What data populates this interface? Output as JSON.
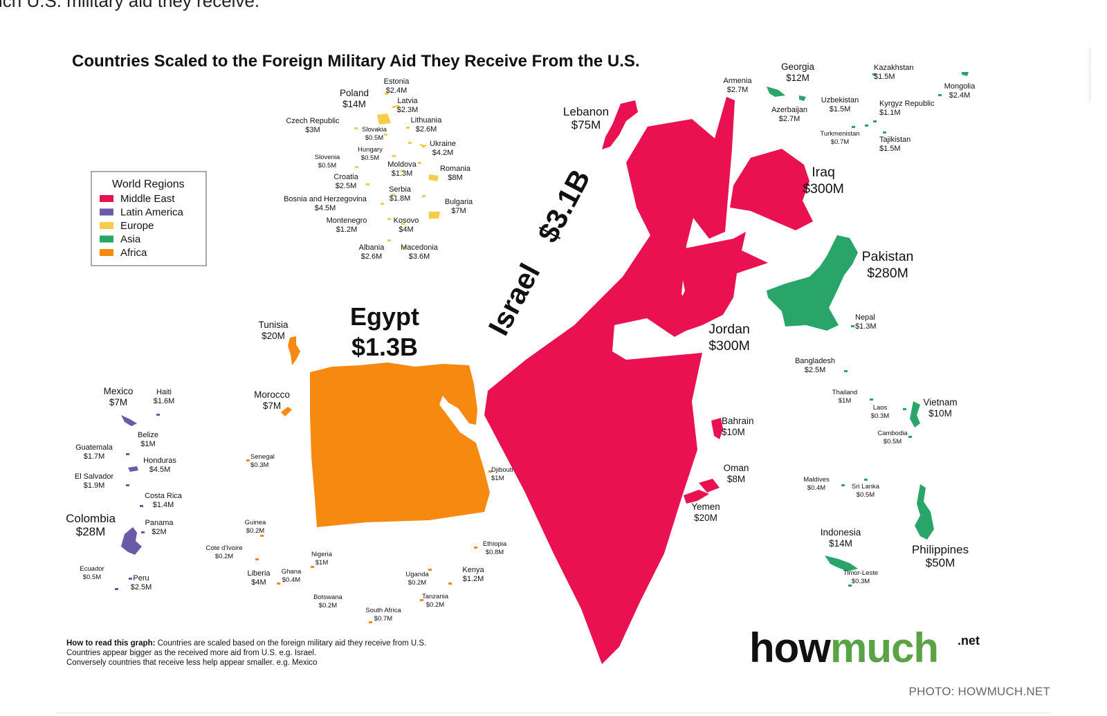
{
  "article": {
    "caption_fragment": "ich U.S. military aid they receive.",
    "photo_credit": "PHOTO: HOWMUCH.NET"
  },
  "map": {
    "title": "Countries Scaled to the Foreign Military Aid They Receive From the U.S.",
    "legend": {
      "title": "World Regions",
      "items": [
        {
          "label": "Middle East",
          "color": "#ea1150"
        },
        {
          "label": "Latin America",
          "color": "#6a5aa8"
        },
        {
          "label": "Europe",
          "color": "#f6cc4a"
        },
        {
          "label": "Asia",
          "color": "#2aa56a"
        },
        {
          "label": "Africa",
          "color": "#f68a10"
        }
      ]
    },
    "big": {
      "israel_name": "Israel",
      "israel_value": "$3.1B",
      "egypt_name": "Egypt",
      "egypt_value": "$1.3B"
    },
    "labels": [
      {
        "id": "lebanon",
        "name": "Lebanon",
        "value": "$75M",
        "size": "l"
      },
      {
        "id": "iraq",
        "name": "Iraq",
        "value": "$300M",
        "size": "xl"
      },
      {
        "id": "pakistan",
        "name": "Pakistan",
        "value": "$280M",
        "size": "xl"
      },
      {
        "id": "jordan",
        "name": "Jordan",
        "value": "$300M",
        "size": "xl"
      },
      {
        "id": "georgia",
        "name": "Georgia",
        "value": "$12M",
        "size": "m"
      },
      {
        "id": "armenia",
        "name": "Armenia",
        "value": "$2.7M",
        "size": "s"
      },
      {
        "id": "azerbaijan",
        "name": "Azerbaijan",
        "value": "$2.7M",
        "size": "s"
      },
      {
        "id": "kazakhstan",
        "name": "Kazakhstan",
        "value": "$1.5M",
        "size": "s"
      },
      {
        "id": "mongolia",
        "name": "Mongolia",
        "value": "$2.4M",
        "size": "s"
      },
      {
        "id": "uzbekistan",
        "name": "Uzbekistan",
        "value": "$1.5M",
        "size": "s"
      },
      {
        "id": "kyrgyz",
        "name": "Kyrgyz Republic",
        "value": "$1.1M",
        "size": "s"
      },
      {
        "id": "turkmenistan",
        "name": "Turkmenistan",
        "value": "$0.7M",
        "size": "xs"
      },
      {
        "id": "tajikistan",
        "name": "Tajikistan",
        "value": "$1.5M",
        "size": "s"
      },
      {
        "id": "nepal",
        "name": "Nepal",
        "value": "$1.3M",
        "size": "s"
      },
      {
        "id": "bangladesh",
        "name": "Bangladesh",
        "value": "$2.5M",
        "size": "s"
      },
      {
        "id": "thailand",
        "name": "Thailand",
        "value": "$1M",
        "size": "xs"
      },
      {
        "id": "vietnam",
        "name": "Vietnam",
        "value": "$10M",
        "size": "m"
      },
      {
        "id": "laos",
        "name": "Laos",
        "value": "$0.3M",
        "size": "xs"
      },
      {
        "id": "cambodia",
        "name": "Cambodia",
        "value": "$0.5M",
        "size": "xs"
      },
      {
        "id": "bahrain",
        "name": "Bahrain",
        "value": "$10M",
        "size": "m"
      },
      {
        "id": "oman",
        "name": "Oman",
        "value": "$8M",
        "size": "m"
      },
      {
        "id": "yemen",
        "name": "Yemen",
        "value": "$20M",
        "size": "m"
      },
      {
        "id": "maldives",
        "name": "Maldives",
        "value": "$0.4M",
        "size": "xs"
      },
      {
        "id": "srilanka",
        "name": "Sri Lanka",
        "value": "$0.5M",
        "size": "xs"
      },
      {
        "id": "indonesia",
        "name": "Indonesia",
        "value": "$14M",
        "size": "m"
      },
      {
        "id": "philippines",
        "name": "Philippines",
        "value": "$50M",
        "size": "l"
      },
      {
        "id": "timor",
        "name": "Timor-Leste",
        "value": "$0.3M",
        "size": "xs"
      },
      {
        "id": "estonia",
        "name": "Estonia",
        "value": "$2.4M",
        "size": "s"
      },
      {
        "id": "poland",
        "name": "Poland",
        "value": "$14M",
        "size": "m"
      },
      {
        "id": "latvia",
        "name": "Latvia",
        "value": "$2.3M",
        "size": "s"
      },
      {
        "id": "lithuania",
        "name": "Lithuania",
        "value": "$2.6M",
        "size": "s"
      },
      {
        "id": "czech",
        "name": "Czech Republic",
        "value": "$3M",
        "size": "s"
      },
      {
        "id": "slovakia",
        "name": "Slovakia",
        "value": "$0.5M",
        "size": "xs"
      },
      {
        "id": "ukraine",
        "name": "Ukraine",
        "value": "$4.2M",
        "size": "s"
      },
      {
        "id": "hungary",
        "name": "Hungary",
        "value": "$0.5M",
        "size": "xs"
      },
      {
        "id": "slovenia",
        "name": "Slovenia",
        "value": "$0.5M",
        "size": "xs"
      },
      {
        "id": "moldova",
        "name": "Moldova",
        "value": "$1.3M",
        "size": "s"
      },
      {
        "id": "romania",
        "name": "Romania",
        "value": "$8M",
        "size": "s"
      },
      {
        "id": "croatia",
        "name": "Croatia",
        "value": "$2.5M",
        "size": "s"
      },
      {
        "id": "serbia",
        "name": "Serbia",
        "value": "$1.8M",
        "size": "s"
      },
      {
        "id": "bosnia",
        "name": "Bosnia and  Herzegovina",
        "value": "$4.5M",
        "size": "s"
      },
      {
        "id": "bulgaria",
        "name": "Bulgaria",
        "value": "$7M",
        "size": "s"
      },
      {
        "id": "montenegro",
        "name": "Montenegro",
        "value": "$1.2M",
        "size": "s"
      },
      {
        "id": "kosovo",
        "name": "Kosovo",
        "value": "$4M",
        "size": "s"
      },
      {
        "id": "albania",
        "name": "Albania",
        "value": "$2.6M",
        "size": "s"
      },
      {
        "id": "macedonia",
        "name": "Macedonia",
        "value": "$3.6M",
        "size": "s"
      },
      {
        "id": "tunisia",
        "name": "Tunisia",
        "value": "$20M",
        "size": "m"
      },
      {
        "id": "morocco",
        "name": "Morocco",
        "value": "$7M",
        "size": "m"
      },
      {
        "id": "senegal",
        "name": "Senegal",
        "value": "$0.3M",
        "size": "xs"
      },
      {
        "id": "djibouti",
        "name": "Djibouti",
        "value": "$1M",
        "size": "xs"
      },
      {
        "id": "guinea",
        "name": "Guinea",
        "value": "$0.2M",
        "size": "xs"
      },
      {
        "id": "ethiopia",
        "name": "Ethiopia",
        "value": "$0.8M",
        "size": "xs"
      },
      {
        "id": "cotedivoire",
        "name": "Cote d'Ivoire",
        "value": "$0.2M",
        "size": "xs"
      },
      {
        "id": "nigeria",
        "name": "Nigeria",
        "value": "$1M",
        "size": "xs"
      },
      {
        "id": "liberia",
        "name": "Liberia",
        "value": "$4M",
        "size": "s"
      },
      {
        "id": "ghana",
        "name": "Ghana",
        "value": "$0.4M",
        "size": "xs"
      },
      {
        "id": "uganda",
        "name": "Uganda",
        "value": "$0.2M",
        "size": "xs"
      },
      {
        "id": "kenya",
        "name": "Kenya",
        "value": "$1.2M",
        "size": "s"
      },
      {
        "id": "tanzania",
        "name": "Tanzania",
        "value": "$0.2M",
        "size": "xs"
      },
      {
        "id": "botswana",
        "name": "Botswana",
        "value": "$0.2M",
        "size": "xs"
      },
      {
        "id": "southafrica",
        "name": "South Africa",
        "value": "$0.7M",
        "size": "xs"
      },
      {
        "id": "mexico",
        "name": "Mexico",
        "value": "$7M",
        "size": "m"
      },
      {
        "id": "haiti",
        "name": "Haiti",
        "value": "$1.6M",
        "size": "s"
      },
      {
        "id": "belize",
        "name": "Belize",
        "value": "$1M",
        "size": "s"
      },
      {
        "id": "guatemala",
        "name": "Guatemala",
        "value": "$1.7M",
        "size": "s"
      },
      {
        "id": "honduras",
        "name": "Honduras",
        "value": "$4.5M",
        "size": "s"
      },
      {
        "id": "elsalvador",
        "name": "El Salvador",
        "value": "$1.9M",
        "size": "s"
      },
      {
        "id": "costarica",
        "name": "Costa Rica",
        "value": "$1.4M",
        "size": "s"
      },
      {
        "id": "colombia",
        "name": "Colombia",
        "value": "$28M",
        "size": "l"
      },
      {
        "id": "panama",
        "name": "Panama",
        "value": "$2M",
        "size": "s"
      },
      {
        "id": "ecuador",
        "name": "Ecuador",
        "value": "$0.5M",
        "size": "xs"
      },
      {
        "id": "peru",
        "name": "Peru",
        "value": "$2.5M",
        "size": "s"
      }
    ],
    "note": {
      "bold": "How to read this graph:",
      "line1": " Countries are scaled based on the foreign military aid they receive from U.S.",
      "line2": "Countries appear bigger as the received more aid from U.S. e.g. Israel.",
      "line3": "Conversely countries that receive less help appear smaller. e.g. Mexico"
    },
    "brand": {
      "how": "how",
      "much": "much",
      "net": ".net"
    }
  }
}
